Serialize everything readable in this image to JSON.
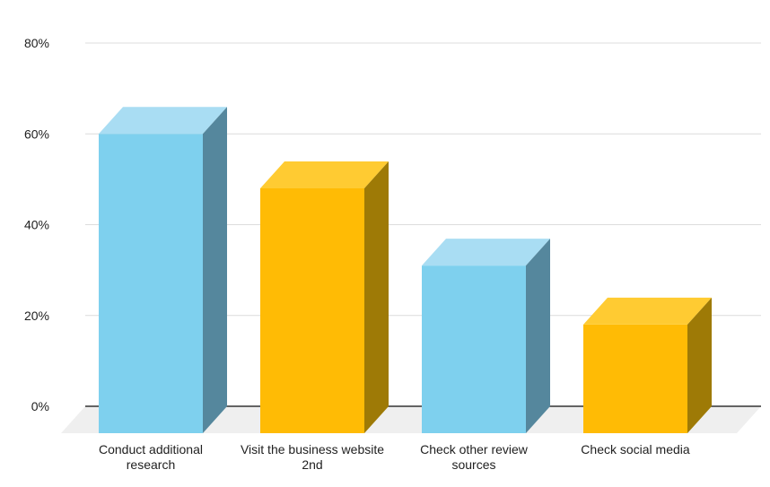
{
  "chart_data": {
    "type": "bar",
    "style": "3d-column",
    "title": "",
    "xlabel": "",
    "ylabel": "",
    "categories": [
      "Conduct additional research",
      "Visit the business website 2nd",
      "Check other review sources",
      "Check social media"
    ],
    "category_lines": [
      [
        "Conduct additional",
        "research"
      ],
      [
        "Visit the business website",
        "2nd"
      ],
      [
        "Check other review",
        "sources"
      ],
      [
        "Check social media"
      ]
    ],
    "values": [
      60,
      48,
      31,
      18
    ],
    "unit": "%",
    "ylim": [
      0,
      80
    ],
    "y_ticks": [
      {
        "value": 0,
        "label": "0%"
      },
      {
        "value": 20,
        "label": "20%"
      },
      {
        "value": 40,
        "label": "40%"
      },
      {
        "value": 60,
        "label": "60%"
      },
      {
        "value": 80,
        "label": "80%"
      }
    ],
    "grid": true,
    "legend": false,
    "bar_color_keys": [
      "blue",
      "yellow",
      "blue",
      "yellow"
    ],
    "colors": {
      "blue": {
        "front": "#7ED0EE",
        "top": "#A9DDF3",
        "side": "#55879D"
      },
      "yellow": {
        "front": "#FFBB05",
        "top": "#FFCB32",
        "side": "#9E7A06"
      },
      "floor": "#EFEFEF",
      "gridline": "#DCDCDC",
      "baseline": "#333333",
      "text": "#212121"
    }
  }
}
